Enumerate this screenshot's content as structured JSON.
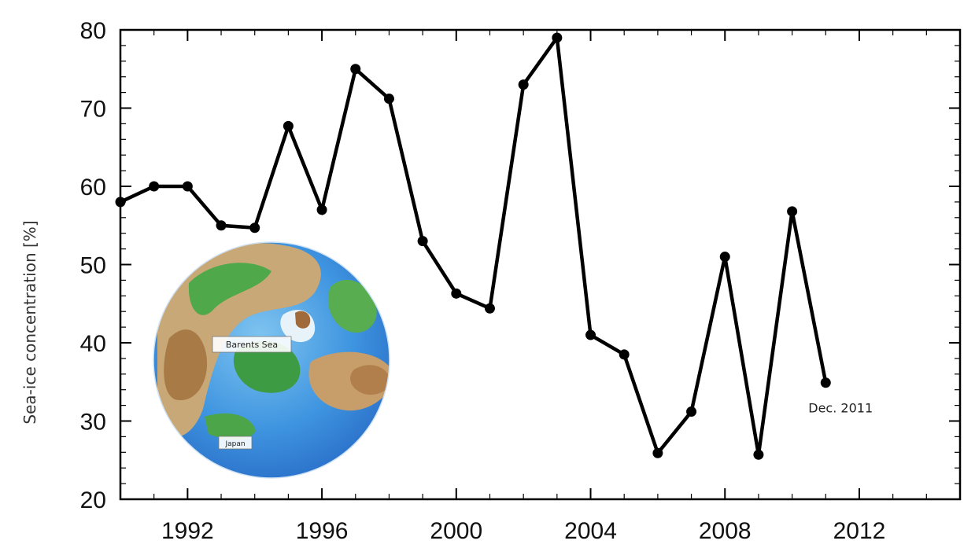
{
  "chart_data": {
    "type": "line",
    "ylabel": "Sea-ice concentration [%]",
    "xlim": [
      1990,
      2015
    ],
    "ylim": [
      20,
      80
    ],
    "x_ticks": [
      1992,
      1996,
      2000,
      2004,
      2008,
      2012
    ],
    "y_ticks": [
      20,
      30,
      40,
      50,
      60,
      70,
      80
    ],
    "grid": false,
    "series": [
      {
        "x": [
          1990,
          1991,
          1992,
          1993,
          1994,
          1995,
          1996,
          1997,
          1998,
          1999,
          2000,
          2001,
          2002,
          2003,
          2004,
          2005,
          2006,
          2007,
          2008,
          2009,
          2010,
          2011
        ],
        "values": [
          58,
          60,
          60,
          55,
          54.7,
          67.7,
          57,
          75,
          71.2,
          53,
          46.3,
          44.4,
          73,
          79,
          41,
          38.5,
          25.9,
          31.2,
          51,
          25.7,
          56.8,
          34.9
        ],
        "color": "#000000"
      }
    ],
    "annotations": [
      {
        "text": "Dec. 2011",
        "x": 2011,
        "y": 34.9
      }
    ]
  },
  "inset_map": {
    "labels": [
      "Barents Sea",
      "Japan"
    ]
  }
}
